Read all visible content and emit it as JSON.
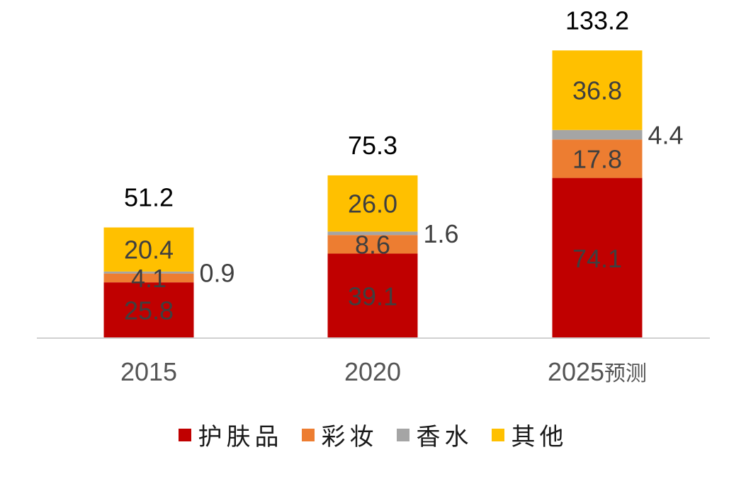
{
  "chart_data": {
    "type": "bar",
    "stacked": true,
    "categories": [
      "2015",
      "2020",
      "2025预测"
    ],
    "series": [
      {
        "name": "护肤品",
        "color": "#c00000",
        "values": [
          25.8,
          39.1,
          74.1
        ]
      },
      {
        "name": "彩妆",
        "color": "#ed7d31",
        "values": [
          4.1,
          8.6,
          17.8
        ]
      },
      {
        "name": "香水",
        "color": "#a5a5a5",
        "values": [
          0.9,
          1.6,
          4.4
        ]
      },
      {
        "name": "其他",
        "color": "#ffc000",
        "values": [
          20.4,
          26.0,
          36.8
        ]
      }
    ],
    "totals": [
      "51.2",
      "75.3",
      "133.2"
    ],
    "legend_position": "bottom",
    "grid": false,
    "ylim": [
      0,
      133.2
    ]
  }
}
